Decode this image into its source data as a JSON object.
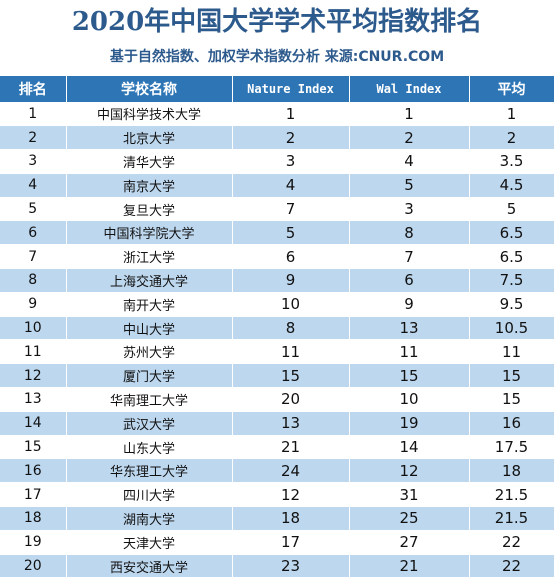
{
  "title": "2020年中国大学学术平均指数排名",
  "subtitle": "基于自然指数、加权学术指数分析 来源:CNUR.COM",
  "table": {
    "headers": [
      "排名",
      "学校名称",
      "Nature Index",
      "Wal Index",
      "平均"
    ],
    "rows": [
      [
        "1",
        "中国科学技术大学",
        "1",
        "1",
        "1"
      ],
      [
        "2",
        "北京大学",
        "2",
        "2",
        "2"
      ],
      [
        "3",
        "清华大学",
        "3",
        "4",
        "3.5"
      ],
      [
        "4",
        "南京大学",
        "4",
        "5",
        "4.5"
      ],
      [
        "5",
        "复旦大学",
        "7",
        "3",
        "5"
      ],
      [
        "6",
        "中国科学院大学",
        "5",
        "8",
        "6.5"
      ],
      [
        "7",
        "浙江大学",
        "6",
        "7",
        "6.5"
      ],
      [
        "8",
        "上海交通大学",
        "9",
        "6",
        "7.5"
      ],
      [
        "9",
        "南开大学",
        "10",
        "9",
        "9.5"
      ],
      [
        "10",
        "中山大学",
        "8",
        "13",
        "10.5"
      ],
      [
        "11",
        "苏州大学",
        "11",
        "11",
        "11"
      ],
      [
        "12",
        "厦门大学",
        "15",
        "15",
        "15"
      ],
      [
        "13",
        "华南理工大学",
        "20",
        "10",
        "15"
      ],
      [
        "14",
        "武汉大学",
        "13",
        "19",
        "16"
      ],
      [
        "15",
        "山东大学",
        "21",
        "14",
        "17.5"
      ],
      [
        "16",
        "华东理工大学",
        "24",
        "12",
        "18"
      ],
      [
        "17",
        "四川大学",
        "12",
        "31",
        "21.5"
      ],
      [
        "18",
        "湖南大学",
        "18",
        "25",
        "21.5"
      ],
      [
        "19",
        "天津大学",
        "17",
        "27",
        "22"
      ],
      [
        "20",
        "西安交通大学",
        "23",
        "21",
        "22"
      ]
    ]
  },
  "colors": {
    "header_bg": "#2e75b6",
    "stripe": "#bdd7ee",
    "title": "#2d5a8c"
  }
}
